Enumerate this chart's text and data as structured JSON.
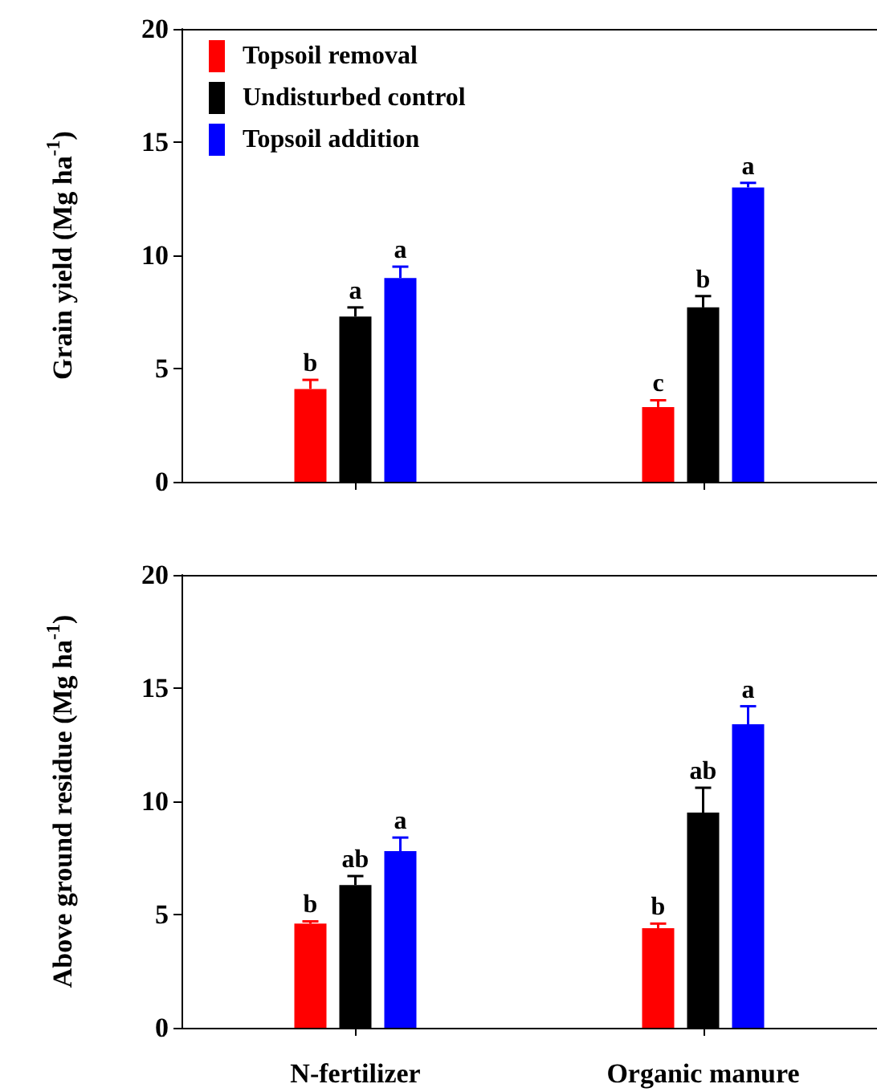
{
  "chart_data": [
    {
      "type": "bar",
      "ylabel": "Grain yield (Mg ha$^{-1}$)",
      "categories": [
        null,
        null
      ],
      "ylim": [
        0,
        20
      ],
      "yticks": [
        0,
        5,
        10,
        15,
        20
      ],
      "legend": "top left",
      "grid": false,
      "series": [
        {
          "name": "Topsoil removal",
          "color": "#ff0000",
          "values": [
            4.1,
            3.3
          ],
          "errors": [
            [
              4.1,
              4.5
            ],
            [
              3.3,
              3.6
            ]
          ],
          "value_labels": [
            "b",
            "c"
          ]
        },
        {
          "name": "Undisturbed control",
          "color": "#000000",
          "values": [
            7.3,
            7.7
          ],
          "errors": [
            [
              7.3,
              7.7
            ],
            [
              7.7,
              8.2
            ]
          ],
          "value_labels": [
            "a",
            "b"
          ]
        },
        {
          "name": "Topsoil addition",
          "color": "#0000ff",
          "values": [
            9.0,
            13.0
          ],
          "errors": [
            [
              9.0,
              9.5
            ],
            [
              13.0,
              13.2
            ]
          ],
          "value_labels": [
            "a",
            "a"
          ]
        }
      ]
    },
    {
      "type": "bar",
      "ylabel": "Above ground residue (Mg ha$^{-1}$)",
      "categories": [
        "N-fertilizer",
        "Organic manure"
      ],
      "ylim": [
        0,
        20
      ],
      "yticks": [
        0,
        5,
        10,
        15,
        20
      ],
      "legend": false,
      "grid": false,
      "series": [
        {
          "color": "#ff0000",
          "values": [
            4.6,
            4.4
          ],
          "errors": [
            [
              4.6,
              4.7
            ],
            [
              4.4,
              4.6
            ]
          ],
          "value_labels": [
            "b",
            "b"
          ]
        },
        {
          "color": "#000000",
          "values": [
            6.3,
            9.5
          ],
          "errors": [
            [
              6.3,
              6.7
            ],
            [
              9.5,
              10.6
            ]
          ],
          "value_labels": [
            "ab",
            "ab"
          ]
        },
        {
          "color": "#0000ff",
          "values": [
            7.8,
            13.4
          ],
          "errors": [
            [
              7.8,
              8.4
            ],
            [
              13.4,
              14.2
            ]
          ],
          "value_labels": [
            "a",
            "a"
          ]
        }
      ]
    }
  ]
}
